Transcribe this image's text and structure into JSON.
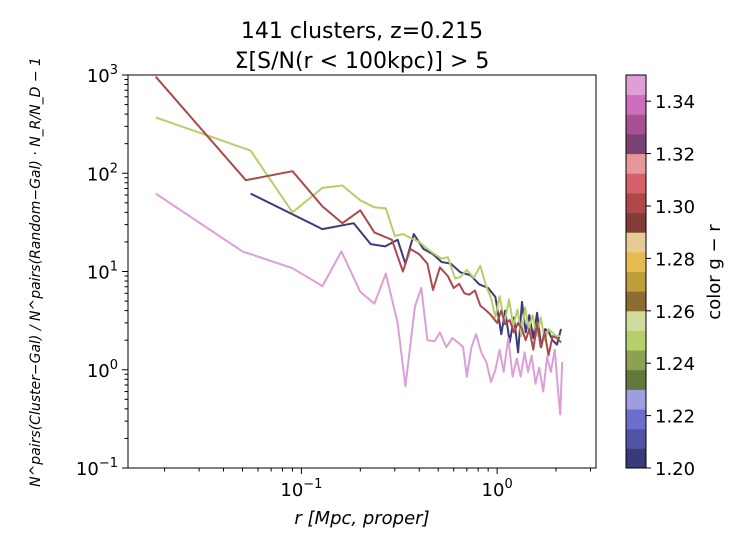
{
  "chart_data": {
    "type": "line",
    "title_line1": "141 clusters, z=0.215",
    "title_line2": "Σ[S/N(r < 100kpc)] > 5",
    "xlabel": "r [Mpc, proper]",
    "ylabel": "N^pairs(Cluster−Gal) / N^pairs(Random−Gal) · N_R/N_D − 1",
    "x_scale": "log",
    "y_scale": "log",
    "xlim": [
      0.013,
      3.2
    ],
    "ylim": [
      0.1,
      1000
    ],
    "x_ticks": [
      {
        "value": 0.1,
        "base": "10",
        "exp": "−1"
      },
      {
        "value": 1,
        "base": "10",
        "exp": "0"
      }
    ],
    "y_ticks": [
      {
        "value": 0.1,
        "base": "10",
        "exp": "−1"
      },
      {
        "value": 1,
        "base": "10",
        "exp": "0"
      },
      {
        "value": 10,
        "base": "10",
        "exp": "1"
      },
      {
        "value": 100,
        "base": "10",
        "exp": "2"
      },
      {
        "value": 1000,
        "base": "10",
        "exp": "3"
      }
    ],
    "series": [
      {
        "color_value": 1.2,
        "color": "#3b3b78",
        "points": [
          [
            0.055,
            62
          ],
          [
            0.128,
            27
          ],
          [
            0.185,
            31
          ],
          [
            0.226,
            19
          ],
          [
            0.268,
            18
          ],
          [
            0.31,
            21
          ],
          [
            0.34,
            12
          ],
          [
            0.375,
            24
          ],
          [
            0.42,
            17
          ],
          [
            0.47,
            15
          ],
          [
            0.52,
            12.5
          ],
          [
            0.58,
            12
          ],
          [
            0.65,
            9.8
          ],
          [
            0.73,
            9.2
          ],
          [
            0.81,
            7.4
          ],
          [
            0.9,
            6.8
          ],
          [
            0.98,
            5.5
          ],
          [
            1.05,
            2.3
          ],
          [
            1.1,
            4.0
          ],
          [
            1.16,
            1.9
          ],
          [
            1.22,
            3.4
          ],
          [
            1.28,
            1.5
          ],
          [
            1.34,
            4.9
          ],
          [
            1.4,
            2.4
          ],
          [
            1.46,
            3.6
          ],
          [
            1.53,
            2.1
          ],
          [
            1.6,
            3.8
          ],
          [
            1.68,
            1.7
          ],
          [
            1.76,
            2.6
          ],
          [
            1.84,
            2.4
          ],
          [
            1.92,
            2.0
          ],
          [
            2.02,
            1.8
          ],
          [
            2.12,
            2.6
          ]
        ]
      },
      {
        "color_value": 1.255,
        "color": "#b5cf6b",
        "points": [
          [
            0.018,
            370
          ],
          [
            0.055,
            170
          ],
          [
            0.09,
            40
          ],
          [
            0.128,
            71
          ],
          [
            0.162,
            75
          ],
          [
            0.2,
            53
          ],
          [
            0.236,
            45
          ],
          [
            0.27,
            44
          ],
          [
            0.3,
            23
          ],
          [
            0.33,
            24
          ],
          [
            0.36,
            22
          ],
          [
            0.4,
            20
          ],
          [
            0.44,
            17
          ],
          [
            0.48,
            15
          ],
          [
            0.52,
            13.5
          ],
          [
            0.56,
            14
          ],
          [
            0.61,
            8.5
          ],
          [
            0.65,
            8.8
          ],
          [
            0.7,
            10.4
          ],
          [
            0.76,
            8.6
          ],
          [
            0.82,
            11.4
          ],
          [
            0.88,
            7.0
          ],
          [
            0.93,
            5.4
          ],
          [
            0.98,
            3.4
          ],
          [
            1.03,
            5.6
          ],
          [
            1.09,
            3.0
          ],
          [
            1.15,
            5.2
          ],
          [
            1.21,
            2.8
          ],
          [
            1.27,
            4.1
          ],
          [
            1.33,
            2.2
          ],
          [
            1.39,
            4.3
          ],
          [
            1.45,
            2.6
          ],
          [
            1.52,
            3.6
          ],
          [
            1.59,
            2.2
          ],
          [
            1.67,
            3.4
          ],
          [
            1.75,
            2.0
          ],
          [
            1.83,
            2.6
          ],
          [
            1.91,
            2.4
          ],
          [
            2.0,
            2.2
          ],
          [
            2.1,
            2.2
          ]
        ]
      },
      {
        "color_value": 1.305,
        "color": "#ad494a",
        "points": [
          [
            0.018,
            960
          ],
          [
            0.052,
            85
          ],
          [
            0.09,
            105
          ],
          [
            0.128,
            46
          ],
          [
            0.162,
            31
          ],
          [
            0.2,
            42
          ],
          [
            0.236,
            25
          ],
          [
            0.29,
            21
          ],
          [
            0.33,
            10
          ],
          [
            0.36,
            17
          ],
          [
            0.4,
            15
          ],
          [
            0.44,
            12
          ],
          [
            0.47,
            6.5
          ],
          [
            0.51,
            11
          ],
          [
            0.56,
            9
          ],
          [
            0.6,
            6.8
          ],
          [
            0.64,
            7.5
          ],
          [
            0.68,
            6.0
          ],
          [
            0.72,
            5.8
          ],
          [
            0.77,
            6.4
          ],
          [
            0.82,
            4.5
          ],
          [
            0.88,
            4.0
          ],
          [
            0.93,
            3.6
          ],
          [
            1.0,
            3.0
          ],
          [
            1.05,
            4.0
          ],
          [
            1.1,
            2.9
          ],
          [
            1.16,
            3.2
          ],
          [
            1.22,
            2.4
          ],
          [
            1.28,
            3.0
          ],
          [
            1.34,
            2.6
          ],
          [
            1.4,
            2.0
          ],
          [
            1.46,
            2.6
          ],
          [
            1.53,
            1.6
          ],
          [
            1.6,
            3.0
          ],
          [
            1.67,
            1.7
          ],
          [
            1.75,
            2.4
          ],
          [
            1.83,
            1.4
          ],
          [
            1.92,
            2.2
          ],
          [
            2.02,
            2.1
          ],
          [
            2.12,
            1.9
          ]
        ]
      },
      {
        "color_value": 1.35,
        "color": "#de9ed6",
        "points": [
          [
            0.018,
            62
          ],
          [
            0.05,
            16
          ],
          [
            0.09,
            10.8
          ],
          [
            0.128,
            7.1
          ],
          [
            0.16,
            16
          ],
          [
            0.2,
            6.2
          ],
          [
            0.236,
            4.7
          ],
          [
            0.27,
            9.5
          ],
          [
            0.31,
            3.0
          ],
          [
            0.34,
            0.68
          ],
          [
            0.38,
            4.4
          ],
          [
            0.41,
            6.8
          ],
          [
            0.44,
            2.0
          ],
          [
            0.48,
            1.95
          ],
          [
            0.51,
            2.4
          ],
          [
            0.55,
            1.7
          ],
          [
            0.59,
            2.1
          ],
          [
            0.63,
            1.9
          ],
          [
            0.67,
            1.7
          ],
          [
            0.7,
            0.85
          ],
          [
            0.74,
            1.7
          ],
          [
            0.78,
            2.3
          ],
          [
            0.83,
            1.5
          ],
          [
            0.88,
            1.2
          ],
          [
            0.93,
            0.75
          ],
          [
            0.98,
            1.0
          ],
          [
            1.03,
            1.6
          ],
          [
            1.08,
            0.95
          ],
          [
            1.14,
            2.1
          ],
          [
            1.2,
            0.85
          ],
          [
            1.26,
            1.3
          ],
          [
            1.32,
            0.85
          ],
          [
            1.38,
            1.5
          ],
          [
            1.44,
            0.95
          ],
          [
            1.5,
            1.4
          ],
          [
            1.57,
            0.72
          ],
          [
            1.64,
            1.05
          ],
          [
            1.72,
            0.6
          ],
          [
            1.8,
            1.35
          ],
          [
            1.88,
            0.95
          ],
          [
            1.97,
            1.6
          ],
          [
            2.05,
            0.6
          ],
          [
            2.1,
            0.35
          ],
          [
            2.15,
            1.2
          ]
        ]
      }
    ],
    "colorbar": {
      "label": "color g − r",
      "ticks": [
        "1.20",
        "1.22",
        "1.24",
        "1.26",
        "1.28",
        "1.30",
        "1.32",
        "1.34"
      ],
      "tick_values": [
        1.2,
        1.22,
        1.24,
        1.26,
        1.28,
        1.3,
        1.32,
        1.34
      ],
      "range": [
        1.2,
        1.35
      ],
      "colors": [
        "#393b79",
        "#5254a3",
        "#6b6ecf",
        "#9c9ede",
        "#637939",
        "#8ca252",
        "#b5cf6b",
        "#cedb9c",
        "#8c6d31",
        "#bd9e39",
        "#e7ba52",
        "#e7cb94",
        "#843c39",
        "#ad494a",
        "#d6616b",
        "#e7969c",
        "#7b4173",
        "#a55194",
        "#ce6dbd",
        "#de9ed6"
      ]
    }
  }
}
